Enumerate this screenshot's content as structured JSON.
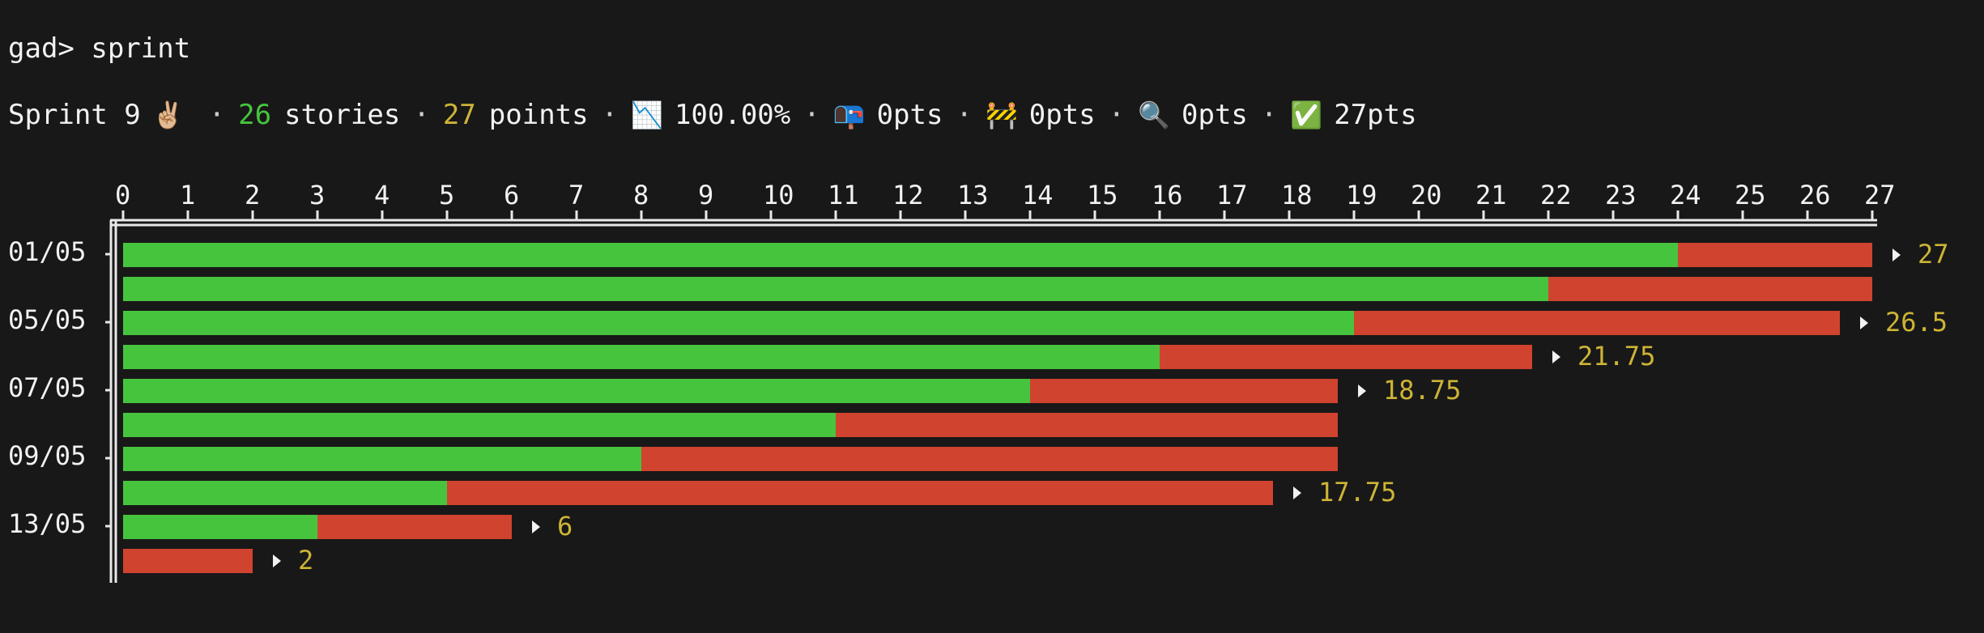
{
  "terminal": {
    "prompt": "gad> sprint"
  },
  "status_bar": {
    "sprint_label": "Sprint 9",
    "sprint_icon": "victory-hand-icon",
    "stories_count": "26",
    "stories_label": "stories",
    "points_count": "27",
    "points_label": "points",
    "burndown_icon": "chart-decreasing-icon",
    "burndown_value": "100.00%",
    "mailbox_icon": "mailbox-icon",
    "mailbox_value": "0pts",
    "construction_icon": "construction-icon",
    "construction_value": "0pts",
    "review_icon": "magnifier-icon",
    "review_value": "0pts",
    "done_icon": "check-mark-button-icon",
    "done_value": "27pts",
    "separator": "·"
  },
  "colors": {
    "background": "#181818",
    "done": "#47c43d",
    "remaining": "#d0432f",
    "total_label": "#cdb436",
    "green_number": "#47c43d"
  },
  "chart_data": {
    "type": "bar",
    "orientation": "horizontal",
    "stacked": true,
    "x_ticks": [
      "0",
      "1",
      "2",
      "3",
      "4",
      "5",
      "6",
      "7",
      "8",
      "9",
      "10",
      "11",
      "12",
      "13",
      "14",
      "15",
      "16",
      "17",
      "18",
      "19",
      "20",
      "21",
      "22",
      "23",
      "24",
      "25",
      "26",
      "27"
    ],
    "xlim": [
      0,
      27
    ],
    "rows": [
      {
        "date": "01/05",
        "done": 24,
        "remaining": 3,
        "total_label": "27"
      },
      {
        "date": "",
        "done": 22,
        "remaining": 5,
        "total_label": ""
      },
      {
        "date": "05/05",
        "done": 19,
        "remaining": 7.5,
        "total_label": "26.5"
      },
      {
        "date": "",
        "done": 16,
        "remaining": 5.75,
        "total_label": "21.75"
      },
      {
        "date": "07/05",
        "done": 14,
        "remaining": 4.75,
        "total_label": "18.75"
      },
      {
        "date": "",
        "done": 11,
        "remaining": 7.75,
        "total_label": ""
      },
      {
        "date": "09/05",
        "done": 8,
        "remaining": 10.75,
        "total_label": ""
      },
      {
        "date": "",
        "done": 5,
        "remaining": 12.75,
        "total_label": "17.75"
      },
      {
        "date": "13/05",
        "done": 3,
        "remaining": 3,
        "total_label": "6"
      },
      {
        "date": "",
        "done": 0,
        "remaining": 2,
        "total_label": "2"
      }
    ],
    "series": [
      {
        "name": "",
        "key": "done"
      },
      {
        "name": "",
        "key": "remaining"
      }
    ],
    "title": "",
    "xlabel": "",
    "ylabel": "",
    "legend": "none",
    "grid": false
  }
}
